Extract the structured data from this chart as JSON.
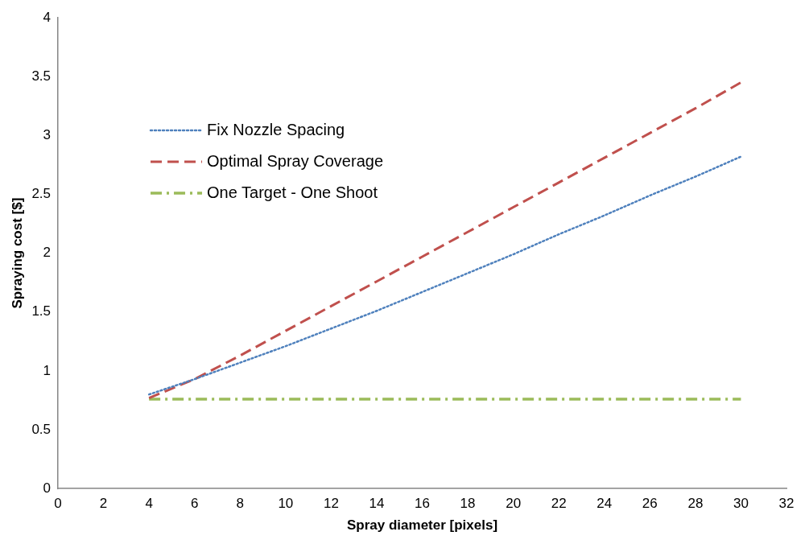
{
  "chart_data": {
    "type": "line",
    "xlabel": "Spray diameter [pixels]",
    "ylabel": "Spraying cost [$]",
    "xlim": [
      0,
      32
    ],
    "xticks": [
      0,
      2,
      4,
      6,
      8,
      10,
      12,
      14,
      16,
      18,
      20,
      22,
      24,
      26,
      28,
      30,
      32
    ],
    "ylim": [
      0,
      4
    ],
    "yticks": [
      0,
      0.5,
      1,
      1.5,
      2,
      2.5,
      3,
      3.5,
      4
    ],
    "grid": false,
    "legend": "top left",
    "marker": "none",
    "x": [
      4,
      6,
      8,
      10,
      12,
      14,
      16,
      18,
      20,
      22,
      24,
      26,
      28,
      30
    ],
    "series": [
      {
        "name": "Fix Nozzle Spacing",
        "color": "#4f81bd",
        "line_style": "dotted",
        "values": [
          0.8,
          0.93,
          1.07,
          1.21,
          1.36,
          1.51,
          1.67,
          1.83,
          1.99,
          2.16,
          2.32,
          2.49,
          2.65,
          2.82
        ]
      },
      {
        "name": "Optimal Spray Coverage",
        "color": "#c0504d",
        "line_style": "dashed",
        "values": [
          0.77,
          0.93,
          1.13,
          1.34,
          1.55,
          1.76,
          1.97,
          2.18,
          2.39,
          2.6,
          2.81,
          3.02,
          3.23,
          3.45
        ]
      },
      {
        "name": "One Target - One Shoot",
        "color": "#9bbb59",
        "line_style": "dashdot",
        "values": [
          0.76,
          0.76,
          0.76,
          0.76,
          0.76,
          0.76,
          0.76,
          0.76,
          0.76,
          0.76,
          0.76,
          0.76,
          0.76,
          0.76
        ]
      }
    ]
  }
}
